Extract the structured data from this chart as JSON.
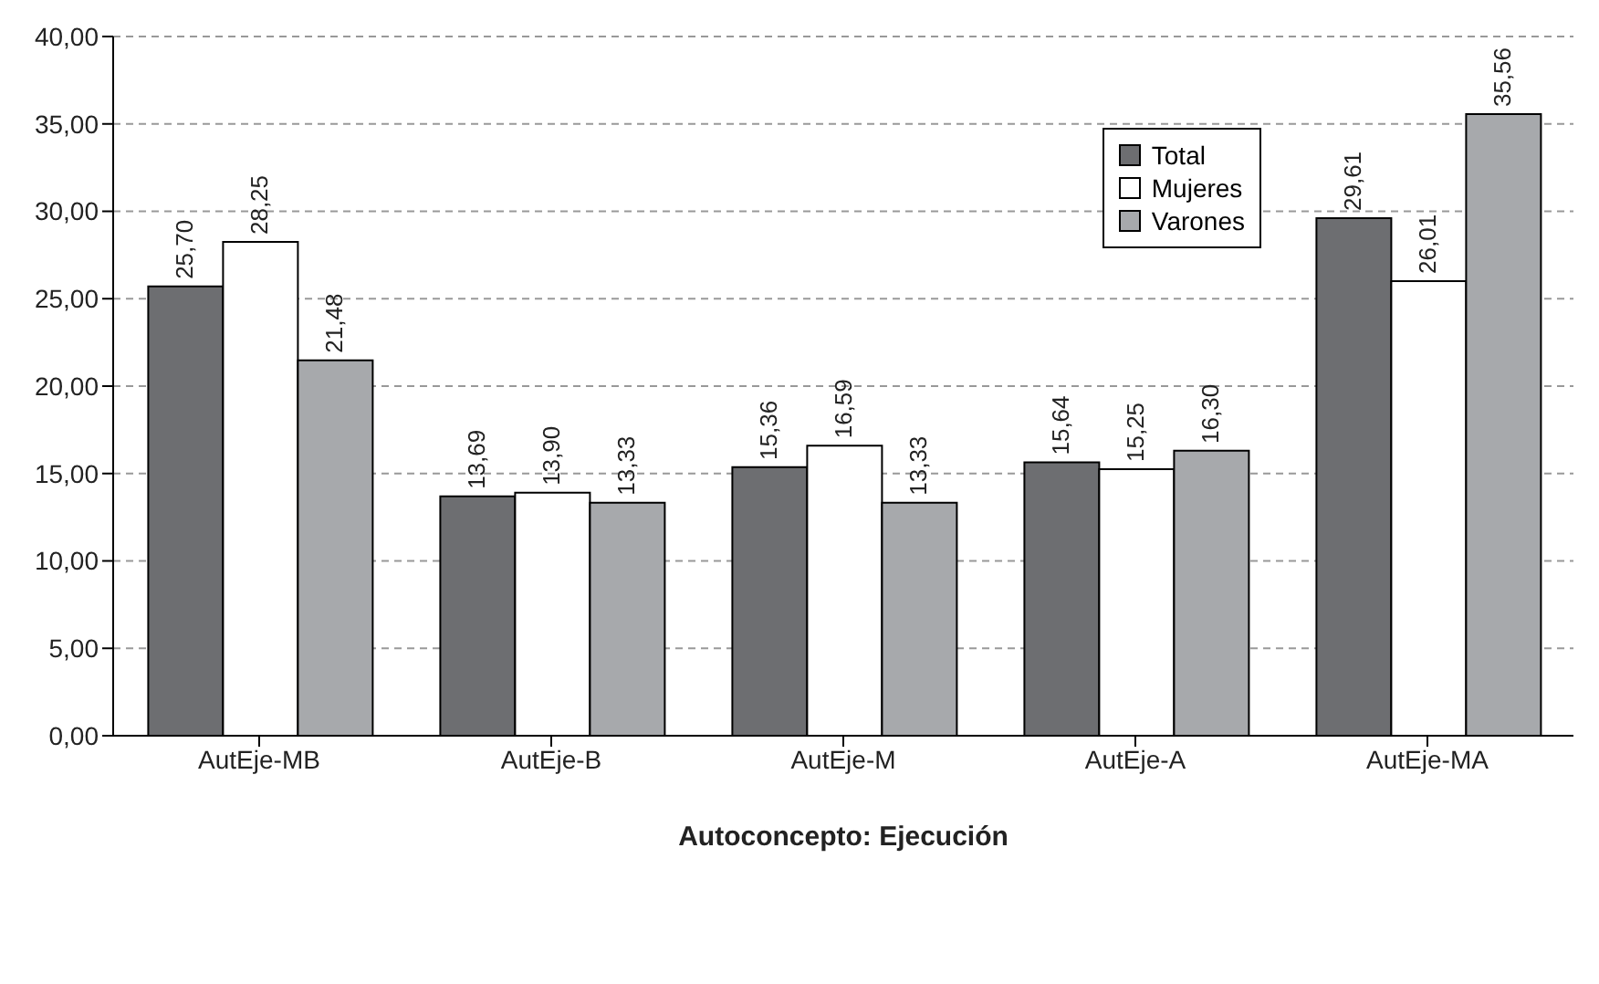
{
  "chart_data": {
    "type": "bar",
    "xlabel": "Autoconcepto: Ejecución",
    "categories": [
      "AutEje-MB",
      "AutEje-B",
      "AutEje-M",
      "AutEje-A",
      "AutEje-MA"
    ],
    "series": [
      {
        "name": "Total",
        "color": "#6d6e71",
        "values": [
          25.7,
          13.69,
          15.36,
          15.64,
          29.61
        ],
        "value_labels": [
          "25,70",
          "13,69",
          "15,36",
          "15,64",
          "29,61"
        ]
      },
      {
        "name": "Mujeres",
        "color": "#ffffff",
        "values": [
          28.25,
          13.9,
          16.59,
          15.25,
          26.01
        ],
        "value_labels": [
          "28,25",
          "13,90",
          "16,59",
          "15,25",
          "26,01"
        ]
      },
      {
        "name": "Varones",
        "color": "#a7a9ac",
        "values": [
          21.48,
          13.33,
          13.33,
          16.3,
          35.56
        ],
        "value_labels": [
          "21,48",
          "13,33",
          "13,33",
          "16,30",
          "35,56"
        ]
      }
    ],
    "ylim": [
      0,
      40
    ],
    "yticks": [
      {
        "value": 0,
        "label": "0,00"
      },
      {
        "value": 5,
        "label": "5,00"
      },
      {
        "value": 10,
        "label": "10,00"
      },
      {
        "value": 15,
        "label": "15,00"
      },
      {
        "value": 20,
        "label": "20,00"
      },
      {
        "value": 25,
        "label": "25,00"
      },
      {
        "value": 30,
        "label": "30,00"
      },
      {
        "value": 35,
        "label": "35,00"
      },
      {
        "value": 40,
        "label": "40,00"
      }
    ],
    "grid": "y",
    "legend": "top right"
  }
}
